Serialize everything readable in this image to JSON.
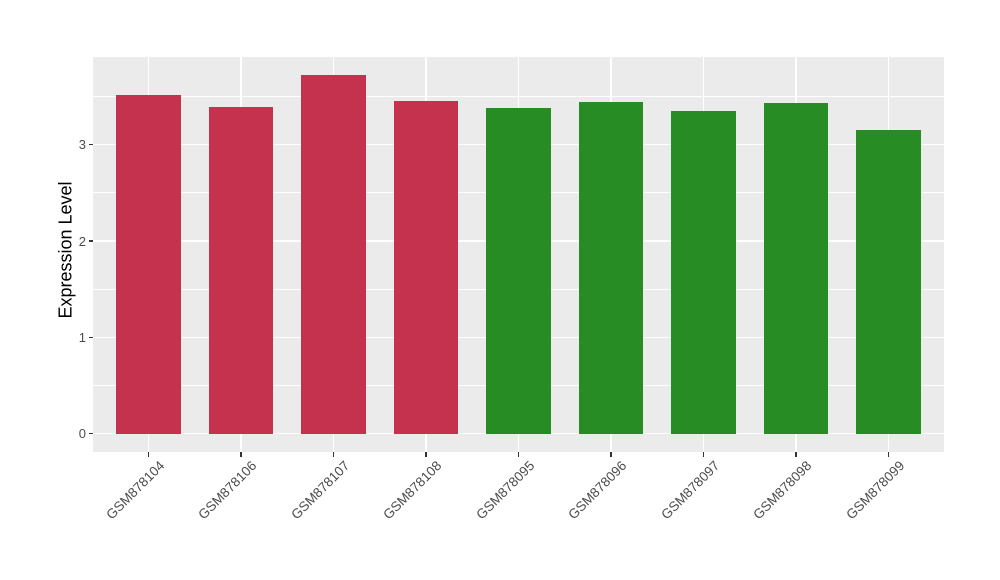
{
  "chart_data": {
    "type": "bar",
    "title": "",
    "xlabel": "",
    "ylabel": "Expression Level",
    "categories": [
      "GSM878104",
      "GSM878106",
      "GSM878107",
      "GSM878108",
      "GSM878095",
      "GSM878096",
      "GSM878097",
      "GSM878098",
      "GSM878099"
    ],
    "values": [
      3.52,
      3.39,
      3.72,
      3.45,
      3.38,
      3.44,
      3.35,
      3.43,
      3.15
    ],
    "groups": [
      "group1",
      "group1",
      "group1",
      "group1",
      "group2",
      "group2",
      "group2",
      "group2",
      "group2"
    ],
    "group_colors": {
      "group1": "#C4324D",
      "group2": "#268C23"
    },
    "y_ticks": [
      "0",
      "1",
      "2",
      "3"
    ],
    "y_tick_values": [
      0,
      1,
      2,
      3
    ],
    "y_minor_tick_values": [
      0.5,
      1.5,
      2.5,
      3.5
    ],
    "ylim": [
      -0.19,
      3.91
    ],
    "bar_width_fraction": 0.7,
    "grid": true,
    "legend": "none",
    "colors": {
      "panel_background": "#EBEBEB",
      "grid_major": "#FFFFFF",
      "grid_minor": "#FFFFFF",
      "tick_mark": "#333333",
      "axis_text": "#4D4D4D",
      "axis_title": "#000000",
      "page_background": "#FFFFFF"
    }
  }
}
